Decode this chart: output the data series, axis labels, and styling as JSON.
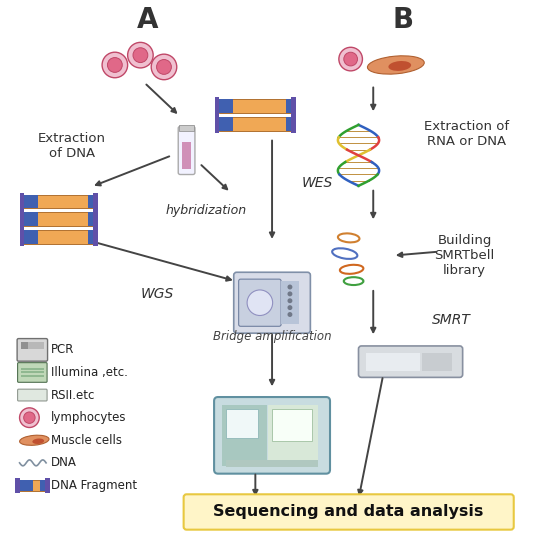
{
  "background_color": "#ffffff",
  "label_A": "A",
  "label_B": "B",
  "text_extraction_dna": "Extraction\nof DNA",
  "text_hybridization": "hybridization",
  "text_WES": "WES",
  "text_WGS": "WGS",
  "text_bridge_amp": "Bridge amplification",
  "text_SMRT": "SMRT",
  "text_extraction_rna": "Extraction of\nRNA or DNA",
  "text_building": "Building\nSMRTbell\nlibrary",
  "text_seq_analysis": "Sequencing and data analysis",
  "legend_items": [
    "PCR",
    "Illumina ,etc.",
    "RSII.etc",
    "lymphocytes",
    "Muscle cells",
    "DNA",
    "DNA Fragment"
  ],
  "seq_box_color": "#fff5c8",
  "seq_box_edge": "#e8c840",
  "arrow_color": "#444444",
  "frag_orange": "#f0a855",
  "frag_blue": "#4060b0",
  "lymph_pink": "#e06888",
  "lymph_outline": "#c04868",
  "lymph_fill": "#f0c0d0"
}
